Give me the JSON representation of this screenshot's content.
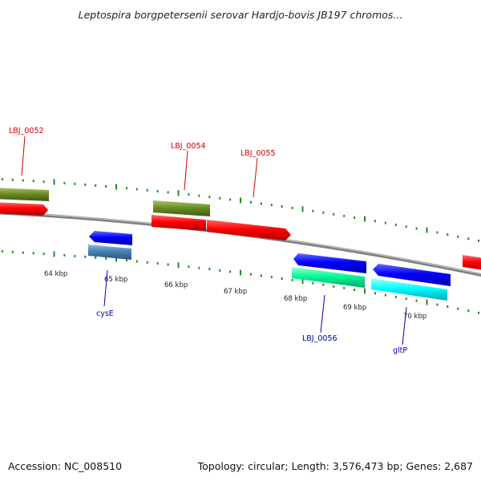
{
  "title": "Leptospira borgpetersenii serovar Hardjo-bovis JB197 chromos...",
  "footer": {
    "accession": "Accession: NC_008510",
    "summary": "Topology: circular; Length: 3,576,473 bp; Genes: 2,687"
  },
  "scale": {
    "ticks": [
      "64 kbp",
      "65 kbp",
      "66 kbp",
      "67 kbp",
      "68 kbp",
      "69 kbp",
      "70 kbp"
    ]
  },
  "genes": {
    "lbj_0052": "LBJ_0052",
    "lbj_0054": "LBJ_0054",
    "lbj_0055": "LBJ_0055",
    "lbj_0056": "LBJ_0056",
    "cyse": "cysE",
    "gltp": "gltP"
  },
  "colors": {
    "forward_label": "#cc0000",
    "reverse_label": "#0000aa",
    "cds_forward": "#ff0000",
    "cds_reverse": "#0000ff",
    "gene_olive": "#6b8e23",
    "gene_steel": "#4682b4",
    "gene_spring": "#00fa9a",
    "gene_cyan": "#00ffff",
    "tick": "#228b22",
    "backbone": "#808080"
  }
}
